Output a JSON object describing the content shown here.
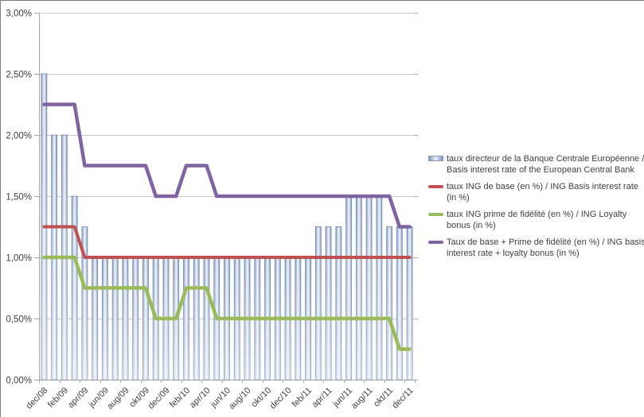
{
  "chart_data": {
    "type": "bar+line",
    "n_months": 37,
    "y_axis": {
      "min": 0,
      "max": 3,
      "step": 0.5,
      "grid": true,
      "ticks": [
        "0,00%",
        "0,50%",
        "1,00%",
        "1,50%",
        "2,00%",
        "2,50%",
        "3,00%"
      ]
    },
    "x_axis": {
      "tick_labels": [
        "dec/08",
        "feb/09",
        "apr/09",
        "jun/09",
        "aug/09",
        "okt/09",
        "dec/09",
        "feb/10",
        "apr/10",
        "jun/10",
        "aug/10",
        "okt/10",
        "dec/10",
        "feb/11",
        "apr/11",
        "jun/11",
        "aug/11",
        "okt/11",
        "dec/11"
      ],
      "months_per_label": 2,
      "label_rotation_deg": -45
    },
    "colors": {
      "bar_edge": "#7E95BE",
      "bar_body": "#EDF1F8",
      "bar_border": "#7386AD",
      "gridline": "#C9C9C9",
      "axis": "#A6A6A6",
      "text": "#3F3F3F",
      "legend_text": "#404040",
      "frame_border": "#7F7F7F"
    },
    "legend_position": "right",
    "series": [
      {
        "name": "ecb-basis-rate",
        "type": "bar",
        "label": "taux directeur de la Banque Centrale Européenne / Basis interest rate of the European Central Bank",
        "color": "#95AFD3",
        "values": [
          2.5,
          2,
          2,
          1.5,
          1.25,
          1,
          1,
          1,
          1,
          1,
          1,
          1,
          1,
          1,
          1,
          1,
          1,
          1,
          1,
          1,
          1,
          1,
          1,
          1,
          1,
          1,
          1,
          1.25,
          1.25,
          1.25,
          1.5,
          1.5,
          1.5,
          1.5,
          1.25,
          1.25,
          1.25
        ]
      },
      {
        "name": "ing-base-rate",
        "type": "line",
        "label": "taux ING de base (en %) / ING Basis interest rate (in %)",
        "color": "#C0504D",
        "stroke_width": 4,
        "values": [
          1.25,
          1.25,
          1.25,
          1.25,
          1,
          1,
          1,
          1,
          1,
          1,
          1,
          1,
          1,
          1,
          1,
          1,
          1,
          1,
          1,
          1,
          1,
          1,
          1,
          1,
          1,
          1,
          1,
          1,
          1,
          1,
          1,
          1,
          1,
          1,
          1,
          1,
          1
        ]
      },
      {
        "name": "ing-loyalty-bonus",
        "type": "line",
        "label": "taux ING prime de fidélité (en %) / ING Loyalty bonus (in %)",
        "color": "#9BBB59",
        "stroke_width": 4.5,
        "values": [
          1,
          1,
          1,
          1,
          0.75,
          0.75,
          0.75,
          0.75,
          0.75,
          0.75,
          0.75,
          0.5,
          0.5,
          0.5,
          0.75,
          0.75,
          0.75,
          0.5,
          0.5,
          0.5,
          0.5,
          0.5,
          0.5,
          0.5,
          0.5,
          0.5,
          0.5,
          0.5,
          0.5,
          0.5,
          0.5,
          0.5,
          0.5,
          0.5,
          0.5,
          0.25,
          0.25
        ]
      },
      {
        "name": "ing-base-plus-loyalty",
        "type": "line",
        "label": "Taux de base + Prime de fidélité (en %) / ING basis interest rate + loyalty bonus (in %)",
        "color": "#8064A2",
        "stroke_width": 4.5,
        "values": [
          2.25,
          2.25,
          2.25,
          2.25,
          1.75,
          1.75,
          1.75,
          1.75,
          1.75,
          1.75,
          1.75,
          1.5,
          1.5,
          1.5,
          1.75,
          1.75,
          1.75,
          1.5,
          1.5,
          1.5,
          1.5,
          1.5,
          1.5,
          1.5,
          1.5,
          1.5,
          1.5,
          1.5,
          1.5,
          1.5,
          1.5,
          1.5,
          1.5,
          1.5,
          1.5,
          1.25,
          1.25
        ]
      }
    ]
  }
}
